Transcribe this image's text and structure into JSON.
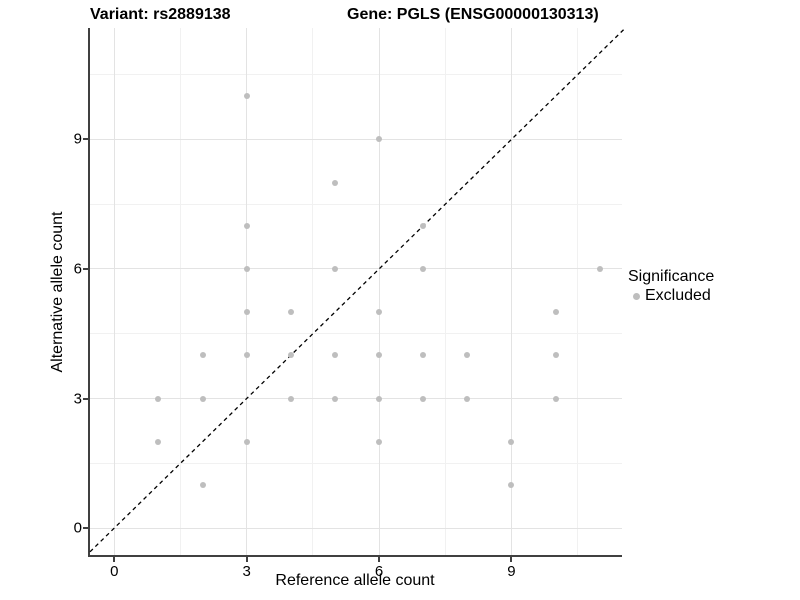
{
  "header": {
    "variant_title": "Variant: rs2889138",
    "gene_title": "Gene: PGLS (ENSG00000130313)"
  },
  "legend": {
    "title": "Significance",
    "items": [
      {
        "label": "Excluded",
        "color": "#bebebe"
      }
    ]
  },
  "chart_data": {
    "type": "scatter",
    "xlabel": "Reference allele count",
    "ylabel": "Alternative allele count",
    "xlim": [
      -0.55,
      11.55
    ],
    "ylim": [
      -0.67,
      11.58
    ],
    "x_ticks": [
      0,
      3,
      6,
      9
    ],
    "y_ticks": [
      0,
      3,
      6,
      9
    ],
    "x_minor_ticks": [
      1.5,
      4.5,
      7.5,
      10.5
    ],
    "y_minor_ticks": [
      1.5,
      4.5,
      7.5,
      10.5
    ],
    "grid": "major+minor",
    "legend_position": "right",
    "identity_line": {
      "slope": 1,
      "intercept": 0,
      "style": "dashed",
      "color": "#000000"
    },
    "series": [
      {
        "name": "Excluded",
        "color": "#bebebe",
        "marker": "circle",
        "points": [
          [
            1,
            2
          ],
          [
            1,
            3
          ],
          [
            2,
            1
          ],
          [
            2,
            3
          ],
          [
            2,
            4
          ],
          [
            3,
            2
          ],
          [
            3,
            4
          ],
          [
            3,
            5
          ],
          [
            3,
            6
          ],
          [
            3,
            7
          ],
          [
            3,
            10
          ],
          [
            4,
            3
          ],
          [
            4,
            4
          ],
          [
            4,
            5
          ],
          [
            5,
            3
          ],
          [
            5,
            4
          ],
          [
            5,
            6
          ],
          [
            5,
            8
          ],
          [
            6,
            2
          ],
          [
            6,
            3
          ],
          [
            6,
            4
          ],
          [
            6,
            5
          ],
          [
            6,
            9
          ],
          [
            7,
            3
          ],
          [
            7,
            4
          ],
          [
            7,
            6
          ],
          [
            7,
            7
          ],
          [
            8,
            3
          ],
          [
            8,
            4
          ],
          [
            9,
            1
          ],
          [
            9,
            2
          ],
          [
            10,
            3
          ],
          [
            10,
            4
          ],
          [
            10,
            5
          ],
          [
            11,
            6
          ]
        ]
      }
    ]
  },
  "colors": {
    "point": "#bebebe",
    "grid_major": "#e3e3e3",
    "grid_minor": "#f1f1f1",
    "axis_line": "#404040",
    "text": "#000000",
    "background": "#ffffff"
  }
}
